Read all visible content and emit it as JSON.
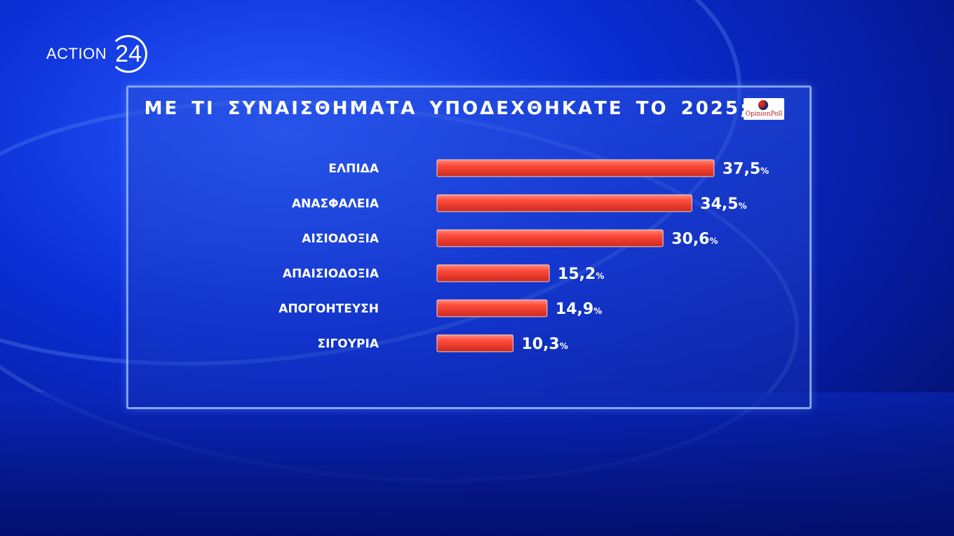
{
  "channel_logo": {
    "word": "ACTION",
    "number": "24"
  },
  "source_logo": {
    "text": "OpinionPoll"
  },
  "colors": {
    "bar_top": "#ff8a7a",
    "bar_main": "#ff4a3a",
    "bar_bottom": "#c92a1e"
  },
  "chart_data": {
    "type": "bar",
    "orientation": "horizontal",
    "title": "ΜΕ ΤΙ ΣΥΝΑΙΣΘΗΜΑΤΑ ΥΠΟΔΕΧΘΗΚΑΤΕ ΤΟ 2025;",
    "categories": [
      "ΕΛΠΙΔΑ",
      "ΑΝΑΣΦΑΛΕΙΑ",
      "ΑΙΣΙΟΔΟΞΙΑ",
      "ΑΠΑΙΣΙΟΔΟΞΙΑ",
      "ΑΠΟΓΟΗΤΕΥΣΗ",
      "ΣΙΓΟΥΡΙΑ"
    ],
    "values": [
      37.5,
      34.5,
      30.6,
      15.2,
      14.9,
      10.3
    ],
    "value_labels": [
      "37,5",
      "34,5",
      "30,6",
      "15,2",
      "14,9",
      "10,3"
    ],
    "unit": "%",
    "grid": false,
    "legend": "none"
  }
}
